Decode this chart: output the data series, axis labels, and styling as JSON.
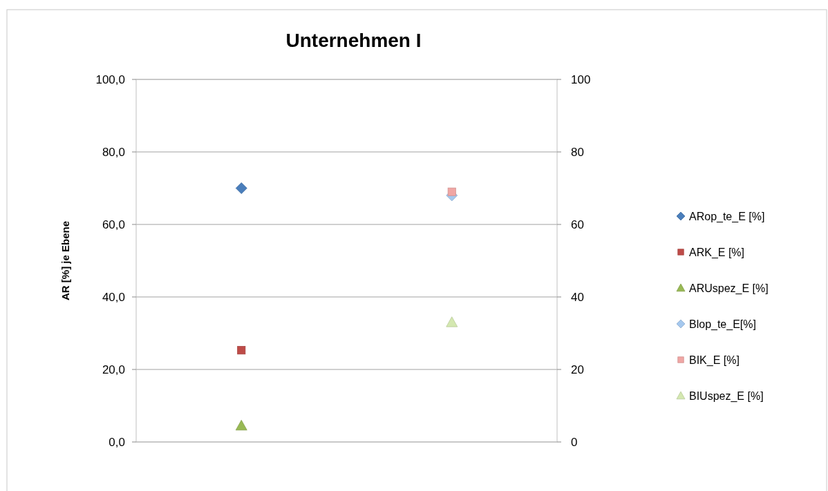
{
  "chart_data": {
    "type": "scatter",
    "title": "Unternehmen I",
    "ylabel": "AR [%] je Ebene",
    "categories": [
      null,
      null
    ],
    "series": [
      {
        "name": "ARop_te_E [%]",
        "color": "#4a7ebb",
        "marker": "diamond",
        "values": [
          70,
          null
        ]
      },
      {
        "name": "ARK_E [%]",
        "color": "#be4b48",
        "marker": "square",
        "values": [
          25.3,
          null
        ]
      },
      {
        "name": "ARUspez_E [%]",
        "color": "#98b954",
        "marker": "triangle",
        "values": [
          4.5,
          null
        ]
      },
      {
        "name": "Blop_te_E[%]",
        "color": "#a5c8ee",
        "marker": "diamond",
        "values": [
          null,
          68
        ]
      },
      {
        "name": "BIK_E [%]",
        "color": "#f0a6a4",
        "marker": "square",
        "values": [
          null,
          69
        ]
      },
      {
        "name": "BIUspez_E [%]",
        "color": "#d4e8b0",
        "marker": "triangle",
        "values": [
          null,
          33
        ]
      }
    ],
    "ylim": [
      0,
      100
    ],
    "yticks": [
      {
        "value": 0,
        "label": "0,0"
      },
      {
        "value": 20,
        "label": "20,0"
      },
      {
        "value": 40,
        "label": "40,0"
      },
      {
        "value": 60,
        "label": "60,0"
      },
      {
        "value": 80,
        "label": "80,0"
      },
      {
        "value": 100,
        "label": "100,0"
      }
    ],
    "y2lim": [
      0,
      100
    ],
    "y2ticks": [
      0,
      20,
      40,
      60,
      80,
      100
    ],
    "grid": "y",
    "legend": "right"
  }
}
